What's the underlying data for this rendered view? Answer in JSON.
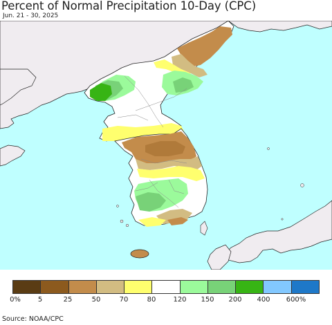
{
  "title": "Percent of Normal Precipitation 10-Day (CPC)",
  "subtitle": "Jun. 21 - 30, 2025",
  "source": "Source: NOAA/CPC",
  "colors": {
    "ocean": "#bfffff",
    "land": "#f0ecf0",
    "border": "#222222",
    "admin_border": "#888888"
  },
  "legend": {
    "colors": [
      "#5a3c14",
      "#8c5a1e",
      "#c38c4b",
      "#d2bc82",
      "#ffff6e",
      "#ffffff",
      "#9bfa9b",
      "#78d278",
      "#37b414",
      "#82c8ff",
      "#1e78c8"
    ],
    "labels": [
      "0%",
      "5",
      "25",
      "50",
      "70",
      "80",
      "120",
      "150",
      "200",
      "400",
      "600%"
    ]
  }
}
